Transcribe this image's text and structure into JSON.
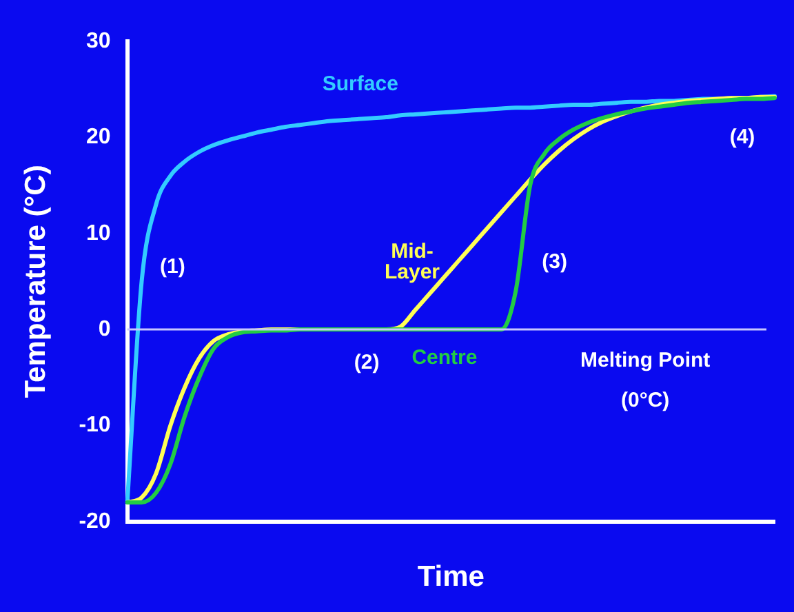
{
  "chart_data": {
    "type": "line",
    "xlabel": "Time",
    "ylabel": "Temperature (°C)",
    "categories": [
      null,
      null,
      null,
      null,
      null,
      null,
      null,
      null,
      null,
      null,
      null,
      null,
      null,
      null,
      null,
      null,
      null,
      null,
      null,
      null,
      null,
      null,
      null,
      null,
      null,
      null,
      null,
      null,
      null,
      null,
      null,
      null,
      null,
      null,
      null,
      null,
      null,
      null,
      null,
      null,
      null,
      null,
      null,
      null,
      null,
      null
    ],
    "series": [
      {
        "name": "Surface",
        "color": "#33ccff",
        "values": [
          -18,
          5,
          13,
          16,
          17.5,
          18.5,
          19.2,
          19.7,
          20.1,
          20.5,
          20.8,
          21.1,
          21.3,
          21.5,
          21.7,
          21.8,
          21.9,
          22,
          22.1,
          22.3,
          22.4,
          22.5,
          22.6,
          22.7,
          22.8,
          22.9,
          23,
          23.1,
          23.1,
          23.2,
          23.3,
          23.4,
          23.4,
          23.5,
          23.6,
          23.7,
          23.7,
          23.8,
          23.8,
          23.9,
          24,
          24,
          24.1,
          24.1,
          24.2,
          24.3
        ]
      },
      {
        "name": "Mid-Layer",
        "color": "#ffff55",
        "values": [
          -18,
          -17.5,
          -15,
          -10,
          -6,
          -3,
          -1.2,
          -0.5,
          -0.2,
          -0.1,
          0,
          0,
          0,
          0,
          0,
          0,
          0,
          0,
          0,
          0.3,
          2,
          3.7,
          5.4,
          7.1,
          8.8,
          10.5,
          12.2,
          13.9,
          15.6,
          17.2,
          18.6,
          19.8,
          20.8,
          21.6,
          22.2,
          22.7,
          23.1,
          23.4,
          23.6,
          23.8,
          23.9,
          24,
          24.1,
          24.1,
          24.2,
          24.2
        ]
      },
      {
        "name": "Centre",
        "color": "#22cc44",
        "values": [
          -18,
          -18,
          -17,
          -14,
          -9,
          -5,
          -2,
          -0.8,
          -0.3,
          -0.2,
          -0.1,
          -0.1,
          0,
          0,
          0,
          0,
          0,
          0,
          0,
          0,
          0,
          0,
          0,
          0,
          0,
          0,
          0,
          4,
          15,
          18.3,
          19.8,
          20.8,
          21.5,
          22,
          22.4,
          22.7,
          23,
          23.2,
          23.4,
          23.6,
          23.7,
          23.8,
          23.9,
          24,
          24,
          24.1
        ]
      }
    ],
    "ylim": [
      -20,
      30
    ],
    "yticks": [
      -20,
      -10,
      0,
      10,
      20,
      30
    ],
    "grid": false,
    "legend": false,
    "marker": "none",
    "line_style": "solid",
    "ref_lines": [
      {
        "axis": "y",
        "value": 0,
        "label": "Melting Point (0°C)",
        "color": "#c8c8ff"
      }
    ],
    "annotations": [
      "(1)",
      "(2)",
      "(3)",
      "(4)"
    ]
  }
}
